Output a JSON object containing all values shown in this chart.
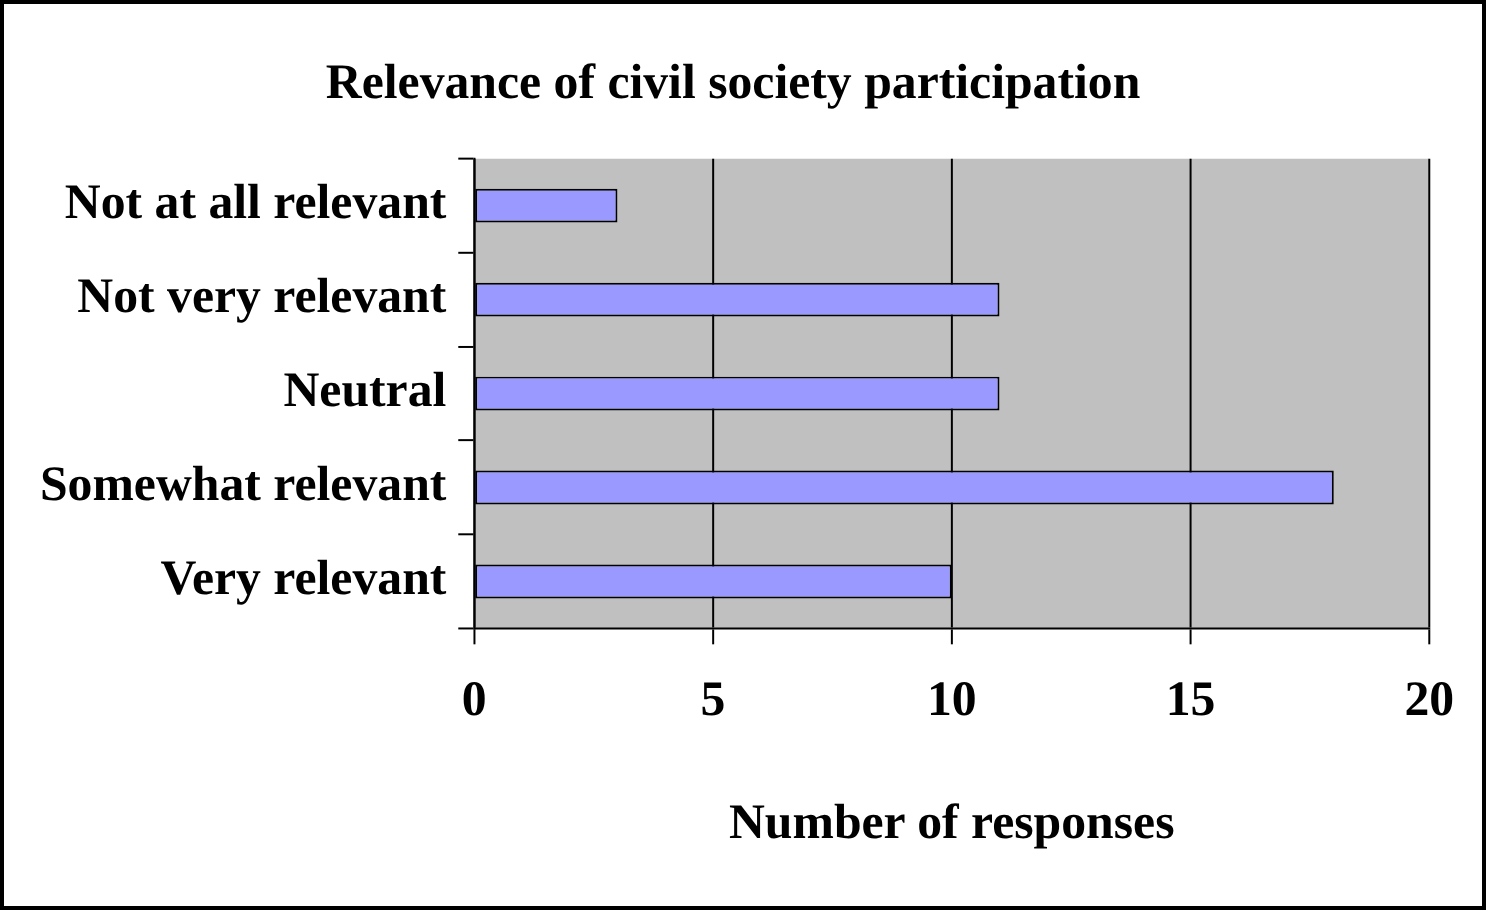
{
  "chart_data": {
    "type": "bar",
    "orientation": "horizontal",
    "title": "Relevance of civil society participation",
    "xlabel": "Number of responses",
    "categories": [
      "Not at all relevant",
      "Not very relevant",
      "Neutral",
      "Somewhat relevant",
      "Very relevant"
    ],
    "values": [
      3,
      11,
      11,
      18,
      10
    ],
    "color": "#9999ff",
    "xlim": [
      0,
      20
    ],
    "xticks": [
      0,
      5,
      10,
      15,
      20
    ],
    "grid": "x"
  }
}
